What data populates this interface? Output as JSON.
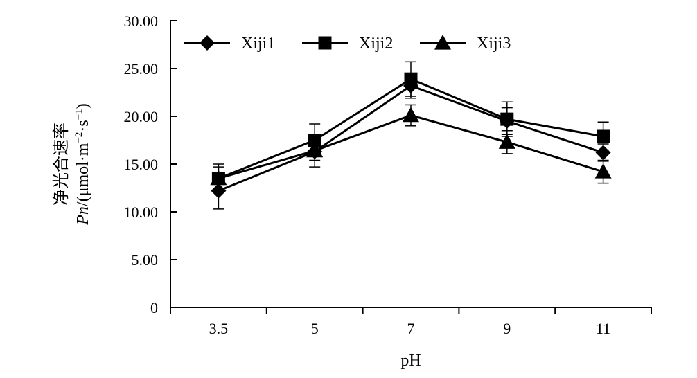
{
  "chart_data": {
    "type": "line",
    "categories": [
      "3.5",
      "5",
      "7",
      "9",
      "11"
    ],
    "xlabel": "pH",
    "ylabel_line1": "净光合速率",
    "ylabel_line2": {
      "italic": "Pn",
      "rest_prefix": "/(μmol·m",
      "sup1": "−2",
      "middle": "·s",
      "sup2": "−1",
      "suffix": ")"
    },
    "ylim": [
      0,
      30
    ],
    "yticks": [
      "0",
      "5.00",
      "10.00",
      "15.00",
      "20.00",
      "25.00",
      "30.00"
    ],
    "ytick_values": [
      0,
      5,
      10,
      15,
      20,
      25,
      30
    ],
    "grid": false,
    "legend_position": "top",
    "series": [
      {
        "name": "Xiji1",
        "marker": "diamond",
        "values": [
          12.2,
          16.3,
          23.2,
          19.5,
          16.2
        ],
        "errors": [
          1.9,
          1.6,
          1.3,
          1.4,
          0.9
        ]
      },
      {
        "name": "Xiji2",
        "marker": "square",
        "values": [
          13.5,
          17.5,
          23.9,
          19.7,
          17.9
        ],
        "errors": [
          1.5,
          1.7,
          1.8,
          1.8,
          1.5
        ]
      },
      {
        "name": "Xiji3",
        "marker": "triangle",
        "values": [
          13.5,
          16.4,
          20.1,
          17.3,
          14.2
        ],
        "errors": [
          1.2,
          1.0,
          1.1,
          1.2,
          1.2
        ]
      }
    ],
    "color": "#000000"
  }
}
